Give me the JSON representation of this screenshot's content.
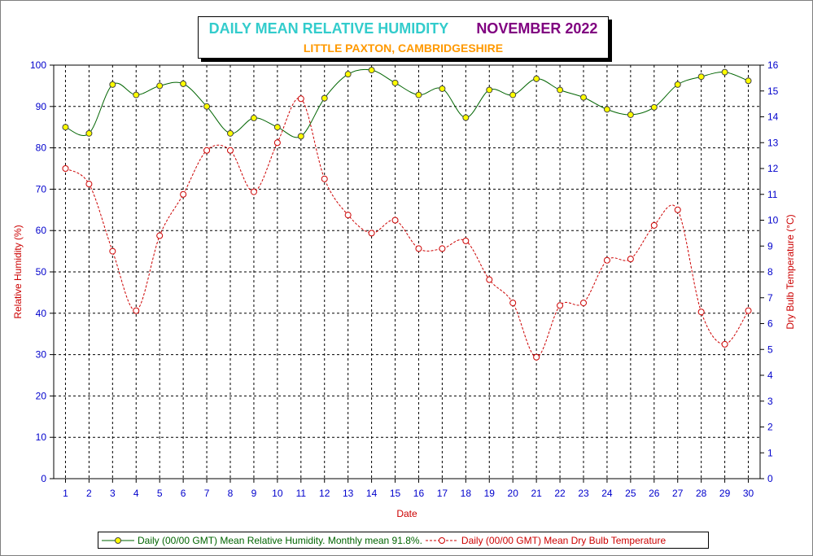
{
  "title": {
    "main_left": "DAILY MEAN RELATIVE HUMIDITY",
    "main_right": "NOVEMBER 2022",
    "subtitle": "LITTLE PAXTON, CAMBRIDGESHIRE",
    "color_left": "#33cccc",
    "color_right": "#800080",
    "color_subtitle": "#ff9900"
  },
  "chart_data": {
    "type": "line",
    "title": "DAILY MEAN RELATIVE HUMIDITY    NOVEMBER 2022",
    "subtitle": "LITTLE PAXTON, CAMBRIDGESHIRE",
    "xlabel": "Date",
    "ylabel": "Relative Humidity (%)",
    "y2label": "Dry Bulb Temperature (°C)",
    "x": [
      1,
      2,
      3,
      4,
      5,
      6,
      7,
      8,
      9,
      10,
      11,
      12,
      13,
      14,
      15,
      16,
      17,
      18,
      19,
      20,
      21,
      22,
      23,
      24,
      25,
      26,
      27,
      28,
      29,
      30
    ],
    "xlim": [
      0.5,
      30.5
    ],
    "ylim": [
      0,
      100
    ],
    "y_ticks": [
      0,
      10,
      20,
      30,
      40,
      50,
      60,
      70,
      80,
      90,
      100
    ],
    "y2lim": [
      0,
      16
    ],
    "y2_ticks": [
      0,
      1,
      2,
      3,
      4,
      5,
      6,
      7,
      8,
      9,
      10,
      11,
      12,
      13,
      14,
      15,
      16
    ],
    "grid": true,
    "legend_position": "bottom",
    "series": [
      {
        "name": "Daily (00/00 GMT) Mean Relative Humidity. Monthly mean 91.8%.",
        "axis": "left",
        "color": "#006400",
        "marker_fill": "#ffff00",
        "line_style": "solid",
        "values": [
          85.0,
          83.5,
          95.3,
          92.8,
          95.0,
          95.5,
          90.0,
          83.5,
          87.2,
          85.0,
          82.8,
          92.0,
          97.8,
          98.8,
          95.7,
          92.8,
          94.3,
          87.3,
          94.0,
          92.8,
          96.7,
          94.0,
          92.2,
          89.3,
          88.0,
          89.8,
          95.3,
          97.2,
          98.3,
          96.2
        ]
      },
      {
        "name": "Daily (00/00 GMT) Mean Dry Bulb Temperature",
        "axis": "right",
        "color": "#cc0000",
        "marker_fill": "#ffffff",
        "line_style": "dashed",
        "values": [
          12.0,
          11.4,
          8.8,
          6.5,
          9.4,
          11.0,
          12.7,
          12.7,
          11.1,
          13.0,
          14.7,
          11.6,
          10.2,
          9.5,
          10.0,
          8.9,
          8.9,
          9.2,
          7.7,
          6.8,
          4.7,
          6.7,
          6.8,
          8.45,
          8.5,
          9.8,
          10.4,
          6.45,
          5.2,
          6.5
        ]
      }
    ]
  }
}
